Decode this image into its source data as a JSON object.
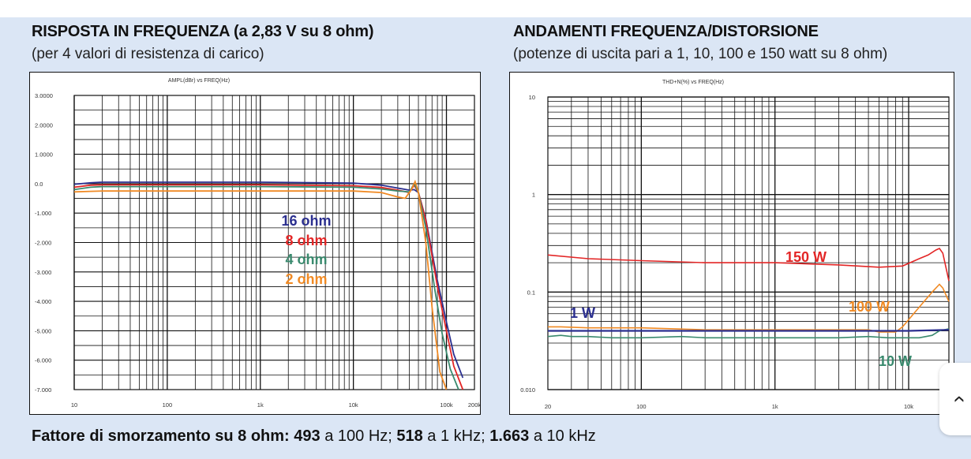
{
  "left_chart": {
    "title": "RISPOSTA IN FREQUENZA (a 2,83 V su 8 ohm)",
    "subtitle": "(per 4 valori di resistenza di carico)",
    "header": "AMPL(dBr)      vs      FREQ(Hz)",
    "y_tick_labels": [
      "3.0000",
      "2.0000",
      "1.0000",
      "0.0",
      "-1.000",
      "-2.000",
      "-3.000",
      "-4.000",
      "-5.000",
      "-6.000",
      "-7.000"
    ],
    "x_tick_labels": [
      "10",
      "100",
      "1k",
      "10k",
      "100k",
      "200k"
    ]
  },
  "right_chart": {
    "title": "ANDAMENTI FREQUENZA/DISTORSIONE",
    "subtitle": "(potenze di uscita pari a 1, 10, 100 e 150 watt su 8 ohm)",
    "header": "THD+N(%)      vs      FREQ(Hz)",
    "y_tick_labels": [
      "10",
      "1",
      "0.1",
      "0.010"
    ],
    "x_tick_labels": [
      "20",
      "100",
      "1k",
      "10k"
    ]
  },
  "footer": {
    "label": "Fattore di smorzamento su 8 ohm:",
    "v1": "493",
    "t1": " a 100 Hz; ",
    "v2": "518",
    "t2": " a 1 kHz; ",
    "v3": "1.663",
    "t3": " a 10 kHz"
  },
  "side_button": {
    "icon": "chevron-icon",
    "glyph": "‹"
  },
  "colors": {
    "16 ohm": "#2b2f8f",
    "8 ohm": "#e32626",
    "4 ohm": "#3a8a6e",
    "2 ohm": "#f08a24",
    "150 W": "#e32626",
    "100 W": "#f08a24",
    "10 W": "#3a8a6e",
    "1 W": "#2b2f8f"
  },
  "chart_data": [
    {
      "type": "line",
      "title": "RISPOSTA IN FREQUENZA (a 2,83 V su 8 ohm)",
      "xlabel": "FREQ(Hz)",
      "ylabel": "AMPL(dBr)",
      "x_scale": "log",
      "xlim": [
        10,
        200000
      ],
      "ylim": [
        -7,
        3
      ],
      "grid": true,
      "series": [
        {
          "name": "16 ohm",
          "color": "#2b2f8f",
          "x": [
            10,
            15,
            20,
            100,
            1000,
            10000,
            20000,
            30000,
            40000,
            45000,
            50000,
            60000,
            80000,
            100000,
            120000,
            150000
          ],
          "y": [
            -0.02,
            0.03,
            0.05,
            0.05,
            0.05,
            0.02,
            -0.05,
            -0.15,
            -0.22,
            -0.2,
            -0.3,
            -1.2,
            -3.3,
            -4.7,
            -5.8,
            -6.6
          ]
        },
        {
          "name": "8 ohm",
          "color": "#e32626",
          "x": [
            10,
            15,
            20,
            100,
            1000,
            10000,
            20000,
            30000,
            40000,
            45000,
            50000,
            60000,
            80000,
            100000,
            120000,
            150000
          ],
          "y": [
            -0.12,
            -0.05,
            -0.04,
            -0.04,
            -0.04,
            -0.07,
            -0.13,
            -0.22,
            -0.3,
            -0.05,
            -0.3,
            -1.25,
            -3.5,
            -5.0,
            -6.2,
            -7.0
          ]
        },
        {
          "name": "4 ohm",
          "color": "#3a8a6e",
          "x": [
            10,
            15,
            20,
            100,
            1000,
            10000,
            20000,
            30000,
            40000,
            45000,
            50000,
            60000,
            75000,
            90000,
            110000,
            135000
          ],
          "y": [
            -0.2,
            -0.12,
            -0.1,
            -0.1,
            -0.1,
            -0.12,
            -0.18,
            -0.25,
            -0.28,
            0.0,
            -0.3,
            -1.5,
            -3.6,
            -5.1,
            -6.3,
            -7.0
          ]
        },
        {
          "name": "2 ohm",
          "color": "#f08a24",
          "x": [
            10,
            15,
            20,
            100,
            1000,
            10000,
            20000,
            30000,
            36000,
            42000,
            46000,
            50000,
            60000,
            70000,
            85000,
            100000
          ],
          "y": [
            -0.28,
            -0.26,
            -0.25,
            -0.25,
            -0.25,
            -0.25,
            -0.3,
            -0.45,
            -0.5,
            -0.2,
            0.07,
            -0.3,
            -2.0,
            -4.2,
            -6.4,
            -7.0
          ]
        }
      ]
    },
    {
      "type": "line",
      "title": "ANDAMENTI FREQUENZA/DISTORSIONE",
      "xlabel": "FREQ(Hz)",
      "ylabel": "THD+N(%)",
      "x_scale": "log",
      "y_scale": "log",
      "xlim": [
        20,
        20000
      ],
      "ylim": [
        0.01,
        10
      ],
      "grid": true,
      "series": [
        {
          "name": "150 W",
          "color": "#e32626",
          "x": [
            20,
            40,
            100,
            300,
            1000,
            3000,
            6000,
            9000,
            12000,
            14000,
            16000,
            17000,
            18000,
            20000
          ],
          "y": [
            0.24,
            0.22,
            0.21,
            0.2,
            0.2,
            0.19,
            0.18,
            0.185,
            0.22,
            0.24,
            0.27,
            0.28,
            0.25,
            0.13
          ]
        },
        {
          "name": "100 W",
          "color": "#f08a24",
          "x": [
            20,
            25,
            40,
            100,
            300,
            500,
            1000,
            3000,
            5000,
            6000,
            7000,
            8000,
            9000,
            12000,
            15000,
            17000,
            18000,
            20000
          ],
          "y": [
            0.044,
            0.044,
            0.043,
            0.043,
            0.041,
            0.041,
            0.041,
            0.041,
            0.041,
            0.039,
            0.039,
            0.039,
            0.044,
            0.07,
            0.1,
            0.12,
            0.11,
            0.08
          ]
        },
        {
          "name": "10 W",
          "color": "#3a8a6e",
          "x": [
            20,
            25,
            30,
            40,
            60,
            100,
            200,
            300,
            500,
            1000,
            2000,
            3000,
            5000,
            7000,
            10000,
            12000,
            15000,
            17000,
            20000
          ],
          "y": [
            0.035,
            0.036,
            0.035,
            0.035,
            0.034,
            0.034,
            0.035,
            0.034,
            0.034,
            0.034,
            0.034,
            0.034,
            0.035,
            0.034,
            0.034,
            0.034,
            0.036,
            0.04,
            0.042
          ]
        },
        {
          "name": "1 W",
          "color": "#2b2f8f",
          "x": [
            20,
            100,
            1000,
            10000,
            20000
          ],
          "y": [
            0.04,
            0.04,
            0.04,
            0.04,
            0.041
          ]
        }
      ]
    }
  ]
}
